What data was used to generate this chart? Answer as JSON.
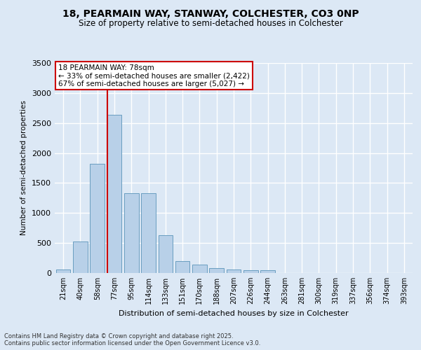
{
  "title": "18, PEARMAIN WAY, STANWAY, COLCHESTER, CO3 0NP",
  "subtitle": "Size of property relative to semi-detached houses in Colchester",
  "xlabel": "Distribution of semi-detached houses by size in Colchester",
  "ylabel": "Number of semi-detached properties",
  "categories": [
    "21sqm",
    "40sqm",
    "58sqm",
    "77sqm",
    "95sqm",
    "114sqm",
    "133sqm",
    "151sqm",
    "170sqm",
    "188sqm",
    "207sqm",
    "226sqm",
    "244sqm",
    "263sqm",
    "281sqm",
    "300sqm",
    "319sqm",
    "337sqm",
    "356sqm",
    "374sqm",
    "393sqm"
  ],
  "values": [
    60,
    530,
    1820,
    2640,
    1330,
    1330,
    630,
    200,
    140,
    80,
    60,
    50,
    50,
    0,
    0,
    0,
    0,
    0,
    0,
    0,
    0
  ],
  "bar_color": "#b8d0e8",
  "bar_edge_color": "#6a9ec0",
  "annotation_title": "18 PEARMAIN WAY: 78sqm",
  "annotation_line1": "← 33% of semi-detached houses are smaller (2,422)",
  "annotation_line2": "67% of semi-detached houses are larger (5,027) →",
  "annotation_box_facecolor": "#ffffff",
  "annotation_box_edgecolor": "#cc0000",
  "red_line_index": 3,
  "ylim": [
    0,
    3500
  ],
  "yticks": [
    0,
    500,
    1000,
    1500,
    2000,
    2500,
    3000,
    3500
  ],
  "background_color": "#dce8f5",
  "grid_color": "#ffffff",
  "footer_line1": "Contains HM Land Registry data © Crown copyright and database right 2025.",
  "footer_line2": "Contains public sector information licensed under the Open Government Licence v3.0."
}
